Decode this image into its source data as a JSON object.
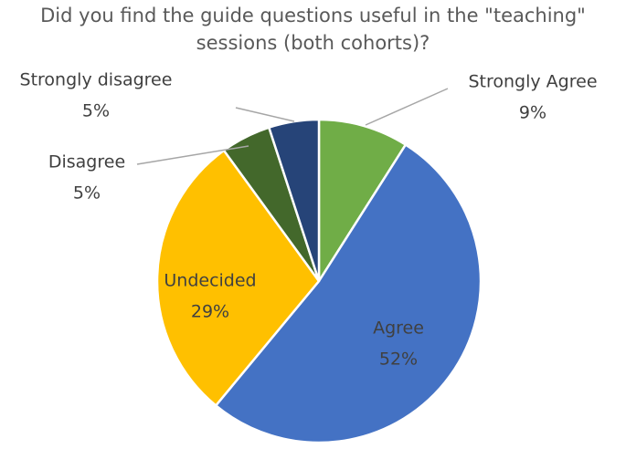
{
  "chart_data": {
    "type": "pie",
    "title": "Did you find the guide questions useful in the \"teaching\" sessions (both cohorts)?",
    "categories": [
      "Strongly Agree",
      "Agree",
      "Undecided",
      "Disagree",
      "Strongly disagree"
    ],
    "values": [
      9,
      52,
      29,
      5,
      5
    ],
    "value_labels": [
      "9%",
      "52%",
      "29%",
      "5%",
      "5%"
    ],
    "colors": [
      "#70ad47",
      "#4472c4",
      "#ffc000",
      "#43682b",
      "#264478"
    ]
  }
}
